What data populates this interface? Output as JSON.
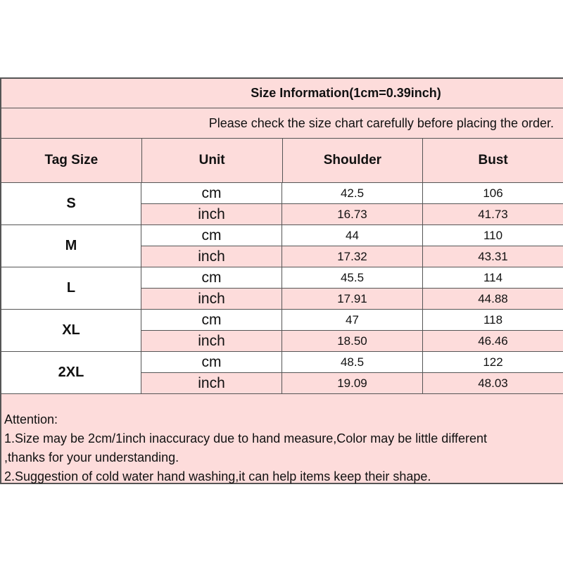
{
  "title": "Size Information(1cm=0.39inch)",
  "subtitle": "Please check the size chart carefully before placing the order.",
  "headers": [
    "Tag Size",
    "Unit",
    "Shoulder",
    "Bust"
  ],
  "rows": [
    {
      "tag": "S",
      "cm": {
        "unit": "cm",
        "shoulder": "42.5",
        "bust": "106"
      },
      "inch": {
        "unit": "inch",
        "shoulder": "16.73",
        "bust": "41.73"
      }
    },
    {
      "tag": "M",
      "cm": {
        "unit": "cm",
        "shoulder": "44",
        "bust": "110"
      },
      "inch": {
        "unit": "inch",
        "shoulder": "17.32",
        "bust": "43.31"
      }
    },
    {
      "tag": "L",
      "cm": {
        "unit": "cm",
        "shoulder": "45.5",
        "bust": "114"
      },
      "inch": {
        "unit": "inch",
        "shoulder": "17.91",
        "bust": "44.88"
      }
    },
    {
      "tag": "XL",
      "cm": {
        "unit": "cm",
        "shoulder": "47",
        "bust": "118"
      },
      "inch": {
        "unit": "inch",
        "shoulder": "18.50",
        "bust": "46.46"
      }
    },
    {
      "tag": "2XL",
      "cm": {
        "unit": "cm",
        "shoulder": "48.5",
        "bust": "122"
      },
      "inch": {
        "unit": "inch",
        "shoulder": "19.09",
        "bust": "48.03"
      }
    }
  ],
  "notes": [
    "Attention:",
    "1.Size may be 2cm/1inch inaccuracy due to hand measure,Color may be little different",
    ",thanks for your understanding.",
    "2.Suggestion of cold water hand washing,it can help items keep their shape."
  ],
  "colors": {
    "pink": "#fddcdb",
    "border": "#555555"
  }
}
